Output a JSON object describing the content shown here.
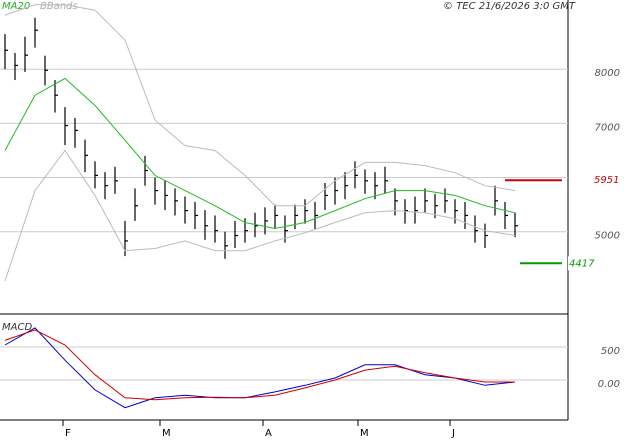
{
  "header": {
    "copyright": "© TEC 21/6/2026 3:0 GMT"
  },
  "chart_data": [
    {
      "type": "ohlc",
      "xlim": [
        -0.5,
        56.3
      ],
      "xticks": [
        {
          "value": 5.8,
          "label": "F"
        },
        {
          "value": 15.5,
          "label": "M"
        },
        {
          "value": 25.8,
          "label": "A"
        },
        {
          "value": 35.3,
          "label": "M"
        },
        {
          "value": 44.5,
          "label": "J"
        }
      ],
      "ylim": [
        3481,
        9278
      ],
      "yticks": [
        5000,
        6000,
        7000,
        8000
      ],
      "grid": true,
      "bar_color": "#000000",
      "close": [
        8350,
        8070,
        8260,
        8720,
        7980,
        7520,
        6960,
        6870,
        6410,
        6040,
        5850,
        5940,
        4830,
        5480,
        6130,
        5760,
        5670,
        5570,
        5390,
        5300,
        5110,
        5020,
        4740,
        4930,
        5020,
        5110,
        5200,
        5300,
        5020,
        5300,
        5390,
        5300,
        5670,
        5760,
        5850,
        6040,
        5940,
        5850,
        5940,
        5570,
        5390,
        5390,
        5570,
        5480,
        5570,
        5390,
        5300,
        5020,
        4930,
        5570,
        5300,
        5110
      ],
      "high": [
        8650,
        8300,
        8600,
        8950,
        8250,
        7800,
        7300,
        7100,
        6700,
        6300,
        6100,
        6200,
        5200,
        5800,
        6400,
        6000,
        5950,
        5800,
        5650,
        5550,
        5400,
        5300,
        5000,
        5200,
        5250,
        5350,
        5450,
        5500,
        5300,
        5500,
        5600,
        5550,
        5900,
        6000,
        6100,
        6300,
        6150,
        6100,
        6200,
        5800,
        5600,
        5650,
        5800,
        5700,
        5800,
        5600,
        5550,
        5300,
        5150,
        5850,
        5550,
        5350
      ],
      "low": [
        8000,
        7800,
        7950,
        8400,
        7700,
        7200,
        6600,
        6550,
        6100,
        5800,
        5600,
        5700,
        4550,
        5200,
        5850,
        5500,
        5400,
        5300,
        5150,
        5050,
        4850,
        4800,
        4500,
        4700,
        4800,
        4900,
        4950,
        5050,
        4800,
        5050,
        5150,
        5050,
        5400,
        5500,
        5600,
        5800,
        5700,
        5600,
        5700,
        5300,
        5150,
        5150,
        5350,
        5250,
        5350,
        5150,
        5050,
        4800,
        4700,
        5300,
        5050,
        4900
      ],
      "line_x": [
        0,
        3,
        6,
        9,
        12,
        15,
        18,
        21,
        24,
        27,
        30,
        33,
        36,
        39,
        42,
        45,
        48,
        51
      ],
      "ma20": {
        "name": "MA20",
        "color": "#22bb22",
        "values": [
          6500,
          7520,
          7830,
          7330,
          6690,
          6040,
          5760,
          5480,
          5170,
          5060,
          5170,
          5390,
          5610,
          5760,
          5760,
          5670,
          5480,
          5350
        ]
      },
      "bbands": {
        "name": "BBands",
        "color": "#bbbbbb",
        "upper": [
          9000,
          9190,
          9190,
          9090,
          8540,
          7060,
          6590,
          6500,
          6040,
          5480,
          5480,
          5940,
          6280,
          6280,
          6220,
          6090,
          5850,
          5760
        ],
        "lower": [
          4090,
          5760,
          6500,
          5670,
          4650,
          4690,
          4830,
          4650,
          4650,
          4830,
          4980,
          5170,
          5350,
          5390,
          5350,
          5240,
          5020,
          4930
        ]
      },
      "levels": [
        {
          "value": 5951,
          "label": "5951",
          "color": "#cc0000"
        },
        {
          "value": 4417,
          "label": "4417",
          "color": "#009900"
        }
      ]
    },
    {
      "type": "line",
      "title": "MACD",
      "xlim": [
        -0.5,
        56.3
      ],
      "ylim": [
        -606,
        970
      ],
      "yticks": [
        {
          "value": 0,
          "label": "0.00"
        },
        500
      ],
      "grid": true,
      "x": [
        0,
        3,
        6,
        9,
        12,
        15,
        18,
        21,
        24,
        27,
        30,
        33,
        36,
        39,
        42,
        45,
        48,
        51
      ],
      "series": [
        {
          "color": "#0000cc",
          "values": [
            530,
            790,
            300,
            -150,
            -420,
            -270,
            -230,
            -270,
            -270,
            -180,
            -80,
            30,
            230,
            230,
            80,
            30,
            -80,
            -30
          ]
        },
        {
          "color": "#cc0000",
          "values": [
            600,
            760,
            530,
            80,
            -270,
            -300,
            -270,
            -260,
            -270,
            -230,
            -120,
            0,
            150,
            210,
            110,
            30,
            -30,
            -30
          ]
        }
      ]
    }
  ]
}
